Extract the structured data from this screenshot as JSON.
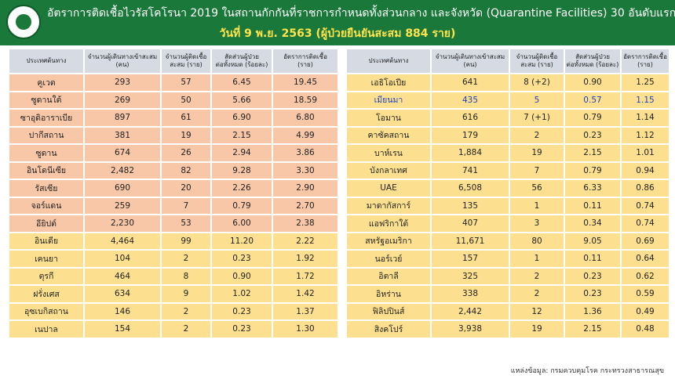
{
  "header": {
    "title": "อัตราการติดเชื้อไวรัสโคโรนา 2019 ในสถานกักกันที่ราชการกำหนดทั้งส่วนกลาง และจังหวัด (Quarantine Facilities) 30 อันดับแรก",
    "subtitle": "วันที่ 9 พ.ย. 2563  (ผู้ป่วยยืนยันสะสม 884 ราย)"
  },
  "tables": [
    {
      "columns": [
        "ประเทศต้นทาง",
        "จำนวนผู้เดินทางเข้าสะสม\n(คน)",
        "จำนวนผู้ติดเชื้อ\nสะสม (ราย)",
        "สัดส่วนผู้ป่วย\nต่อทั้งหมด (ร้อยละ)",
        "อัตราการติดเชื้อ\n(ราย)"
      ],
      "rows": [
        [
          "คูเวต",
          "293",
          "57",
          "6.45",
          "19.45"
        ],
        [
          "ซูดานใต้",
          "269",
          "50",
          "5.66",
          "18.59"
        ],
        [
          "ซาอุดิอาราเบีย",
          "897",
          "61",
          "6.90",
          "6.80"
        ],
        [
          "ปากีสถาน",
          "381",
          "19",
          "2.15",
          "4.99"
        ],
        [
          "ซูดาน",
          "674",
          "26",
          "2.94",
          "3.86"
        ],
        [
          "อินโดนีเซีย",
          "2,482",
          "82",
          "9.28",
          "3.30"
        ],
        [
          "รัสเซีย",
          "690",
          "20",
          "2.26",
          "2.90"
        ],
        [
          "จอร์แดน",
          "259",
          "7",
          "0.79",
          "2.70"
        ],
        [
          "อียิปต์",
          "2,230",
          "53",
          "6.00",
          "2.38"
        ],
        [
          "อินเดีย",
          "4,464",
          "99",
          "11.20",
          "2.22"
        ],
        [
          "เคนยา",
          "104",
          "2",
          "0.23",
          "1.92"
        ],
        [
          "ตุรกี",
          "464",
          "8",
          "0.90",
          "1.72"
        ],
        [
          "ฝรั่งเศส",
          "634",
          "9",
          "1.02",
          "1.42"
        ],
        [
          "อุซเบกิสถาน",
          "146",
          "2",
          "0.23",
          "1.37"
        ],
        [
          "เนปาล",
          "154",
          "2",
          "0.23",
          "1.30"
        ]
      ]
    },
    {
      "columns": [
        "ประเทศต้นทาง",
        "จำนวนผู้เดินทางเข้าสะสม\n(คน)",
        "จำนวนผู้ติดเชื้อ\nสะสม (ราย)",
        "สัดส่วนผู้ป่วย\nต่อทั้งหมด (ร้อยละ)",
        "อัตราการติดเชื้อ\n(ราย)"
      ],
      "rows": [
        [
          "เอธิโอเปีย",
          "641",
          "8 (+2)",
          "0.90",
          "1.25"
        ],
        [
          "เมียนมา",
          "435",
          "5",
          "0.57",
          "1.15"
        ],
        [
          "โอมาน",
          "616",
          "7 (+1)",
          "0.79",
          "1.14"
        ],
        [
          "คาซัคสถาน",
          "179",
          "2",
          "0.23",
          "1.12"
        ],
        [
          "บาห์เรน",
          "1,884",
          "19",
          "2.15",
          "1.01"
        ],
        [
          "บังกลาเทศ",
          "741",
          "7",
          "0.79",
          "0.94"
        ],
        [
          "UAE",
          "6,508",
          "56",
          "6.33",
          "0.86"
        ],
        [
          "มาดากัสการ์",
          "135",
          "1",
          "0.11",
          "0.74"
        ],
        [
          "แอฟริกาใต้",
          "407",
          "3",
          "0.34",
          "0.74"
        ],
        [
          "สหรัฐอเมริกา",
          "11,671",
          "80",
          "9.05",
          "0.69"
        ],
        [
          "นอร์เวย์",
          "157",
          "1",
          "0.11",
          "0.64"
        ],
        [
          "อิตาลี",
          "325",
          "2",
          "0.23",
          "0.62"
        ],
        [
          "อิหร่าน",
          "338",
          "2",
          "0.23",
          "0.59"
        ],
        [
          "ฟิลิปปินส์",
          "2,442",
          "12",
          "1.36",
          "0.49"
        ],
        [
          "สิงคโปร์",
          "3,938",
          "19",
          "2.15",
          "0.48"
        ]
      ]
    }
  ],
  "footer": {
    "source": "แหล่งข้อมูล: กรมควบคุมโรค กระทรวงสาธารณสุข"
  }
}
